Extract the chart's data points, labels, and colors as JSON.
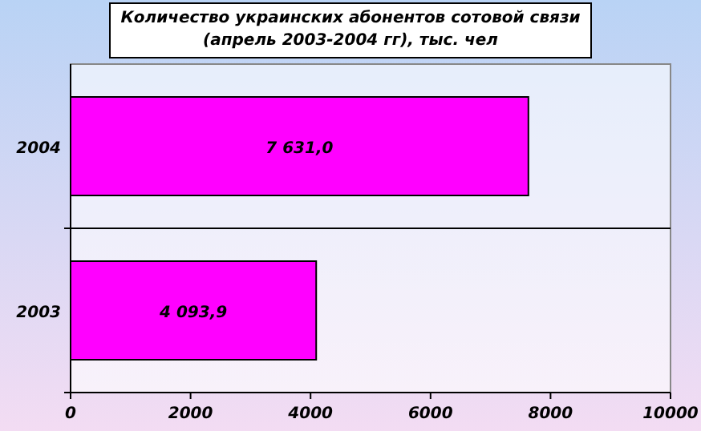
{
  "chart_data": {
    "type": "bar",
    "orientation": "horizontal",
    "title": "Количество украинских абонентов сотовой связи (апрель 2003-2004 гг), тыс. чел",
    "categories": [
      "2004",
      "2003"
    ],
    "values": [
      7631.0,
      4093.9
    ],
    "value_labels": [
      "7 631,0",
      "4 093,9"
    ],
    "color": "#ff00ff",
    "xlim": [
      0,
      10000
    ],
    "xticks": [
      0,
      2000,
      4000,
      6000,
      8000,
      10000
    ]
  }
}
